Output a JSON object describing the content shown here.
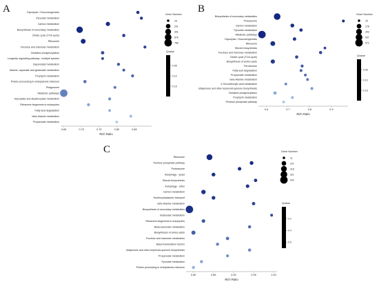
{
  "panels": [
    {
      "letter": "A",
      "chart_data": {
        "type": "scatter",
        "xlabel": "Rich Ratio",
        "xlim": [
          0.645,
          0.895
        ],
        "xticks": [
          "0.65",
          "0.70",
          "0.75",
          "0.80",
          "0.85"
        ],
        "xtick_values": [
          0.65,
          0.7,
          0.75,
          0.8,
          0.85
        ],
        "size_legend": {
          "title": "Gene Number",
          "values": [
            "16",
            "201",
            "391",
            "576",
            "768"
          ],
          "value_nums": [
            16,
            201,
            391,
            576,
            768
          ]
        },
        "color_legend": {
          "title": "Qvalue",
          "ticks": [
            "0.05",
            "0.10",
            "0.15"
          ],
          "tick_values": [
            0.05,
            0.1,
            0.15
          ],
          "range": [
            0.0,
            0.2
          ]
        },
        "categories": [
          "Glycolysis / Gluconeogenesis",
          "Pyruvate metabolism",
          "Carbon metabolism",
          "Biosynthesis of secondary metabolites",
          "Citrate cycle (TCA cycle)",
          "Ribosome",
          "Fructose and mannose metabolism",
          "Oxidative phosphorylation",
          "Longevity regulating pathway - multiple species",
          "Glycerolipid metabolism",
          "Alanine, aspartate and glutamate metabolism",
          "Porphyrin metabolism",
          "Protein processing in endoplasmic reticulum",
          "Phagosome",
          "Metabolic pathways",
          "Glyoxylate and dicarboxylate metabolism",
          "Ribosome biogenesis in eukaryotes",
          "Fatty acid degradation",
          "beta-Alanine metabolism",
          "Propanoate metabolism"
        ],
        "x": [
          0.86,
          0.87,
          0.775,
          0.695,
          0.82,
          0.705,
          0.88,
          0.76,
          0.76,
          0.805,
          0.82,
          0.845,
          0.71,
          0.795,
          0.65,
          0.78,
          0.72,
          0.78,
          0.84,
          0.8
        ],
        "gene_number": [
          60,
          50,
          160,
          520,
          60,
          240,
          45,
          75,
          40,
          50,
          40,
          45,
          60,
          40,
          768,
          45,
          50,
          30,
          35,
          25
        ],
        "qvalue": [
          0.012,
          0.018,
          0.006,
          0.001,
          0.025,
          0.003,
          0.03,
          0.04,
          0.045,
          0.055,
          0.06,
          0.07,
          0.08,
          0.09,
          0.1,
          0.115,
          0.14,
          0.15,
          0.165,
          0.18
        ]
      }
    },
    {
      "letter": "B",
      "chart_data": {
        "type": "scatter",
        "xlabel": "Rich Ratio",
        "xlim": [
          0.57,
          0.97
        ],
        "xticks": [
          "0.6",
          "0.7",
          "0.8",
          "0.9"
        ],
        "xtick_values": [
          0.6,
          0.7,
          0.8,
          0.9
        ],
        "size_legend": {
          "title": "Gene Number",
          "values": [
            "15",
            "178",
            "343",
            "507",
            "672"
          ],
          "value_nums": [
            15,
            178,
            343,
            507,
            672
          ]
        },
        "color_legend": {
          "title": "Qvalue",
          "ticks": [
            "0.05",
            "0.10",
            "0.15"
          ],
          "tick_values": [
            0.05,
            0.1,
            0.15
          ],
          "range": [
            0.0,
            0.2
          ]
        },
        "categories": [
          "Biosynthesis of secondary metabolites",
          "Proteasome",
          "Carbon metabolism",
          "Pyruvate metabolism",
          "Metabolic pathways",
          "Glycolysis / Gluconeogenesis",
          "Ribosome",
          "Steroid biosynthesis",
          "Fructose and mannose metabolism",
          "Citrate cycle (TCA cycle)",
          "Biosynthesis of amino acids",
          "Peroxisome",
          "Fatty acid degradation",
          "Propanoate metabolism",
          "beta-Alanine metabolism",
          "2-Oxocarboxylic acid metabolism",
          "Ubiquinone and other terpenoid-quinone biosynthesis",
          "Oxidative phosphorylation",
          "Porphyrin metabolism",
          "Pentose phosphate pathway"
        ],
        "x": [
          0.65,
          0.955,
          0.72,
          0.76,
          0.58,
          0.73,
          0.63,
          0.87,
          0.85,
          0.74,
          0.63,
          0.765,
          0.76,
          0.78,
          0.79,
          0.69,
          0.81,
          0.64,
          0.72,
          0.68
        ],
        "gene_number": [
          500,
          30,
          100,
          60,
          672,
          70,
          200,
          25,
          50,
          60,
          140,
          40,
          35,
          30,
          30,
          25,
          30,
          60,
          30,
          25
        ],
        "qvalue": [
          0.001,
          0.008,
          0.006,
          0.012,
          0.002,
          0.018,
          0.01,
          0.03,
          0.035,
          0.04,
          0.02,
          0.055,
          0.065,
          0.075,
          0.09,
          0.105,
          0.125,
          0.145,
          0.16,
          0.175
        ]
      }
    },
    {
      "letter": "C",
      "chart_data": {
        "type": "scatter",
        "xlabel": "Rich Ratio",
        "xlim": [
          0.785,
          1.005
        ],
        "xticks": [
          "0.80",
          "0.85",
          "0.90",
          "0.95",
          "1.00"
        ],
        "xtick_values": [
          0.8,
          0.85,
          0.9,
          0.95,
          1.0
        ],
        "size_legend": {
          "title": "Gene Number",
          "values": [
            "11",
            "114",
            "218",
            "321",
            "424"
          ],
          "value_nums": [
            11,
            114,
            218,
            321,
            424
          ]
        },
        "color_legend": {
          "title": "Qvalue",
          "ticks": [
            "0.2",
            "0.4",
            "0.6"
          ],
          "tick_values": [
            0.2,
            0.4,
            0.6
          ],
          "range": [
            0.0,
            0.7
          ]
        },
        "categories": [
          "Ribosome",
          "Pentose phosphate pathway",
          "Proteasome",
          "Autophagy - yeast",
          "Steroid biosynthesis",
          "Autophagy - other",
          "Carbon metabolism",
          "Nucleocytoplasmic transport",
          "beta-Alanine metabolism",
          "Biosynthesis of secondary metabolites",
          "Butanoate metabolism",
          "Ribosome biogenesis in eukaryotes",
          "Betacoaromatic metabolism",
          "Biosynthesis of amino acids",
          "Fructose and mannose metabolism",
          "Basal transcription factors",
          "Ubiquinone and other terpenoid-quinone biosynthesis",
          "Propanoate metabolism",
          "Pyruvate metabolism",
          "Protein processing in endoplasmic reticulum"
        ],
        "x": [
          0.84,
          0.945,
          0.915,
          0.85,
          0.955,
          0.935,
          0.825,
          0.85,
          0.95,
          0.79,
          0.995,
          0.825,
          0.94,
          0.8,
          0.885,
          0.86,
          0.94,
          0.885,
          0.82,
          0.8
        ],
        "gene_number": [
          230,
          60,
          50,
          60,
          40,
          50,
          100,
          60,
          40,
          424,
          20,
          50,
          30,
          80,
          40,
          30,
          30,
          25,
          30,
          30
        ],
        "qvalue": [
          0.01,
          0.015,
          0.02,
          0.03,
          0.05,
          0.06,
          0.05,
          0.08,
          0.12,
          0.04,
          0.15,
          0.2,
          0.25,
          0.22,
          0.3,
          0.35,
          0.38,
          0.42,
          0.48,
          0.55
        ]
      }
    }
  ]
}
